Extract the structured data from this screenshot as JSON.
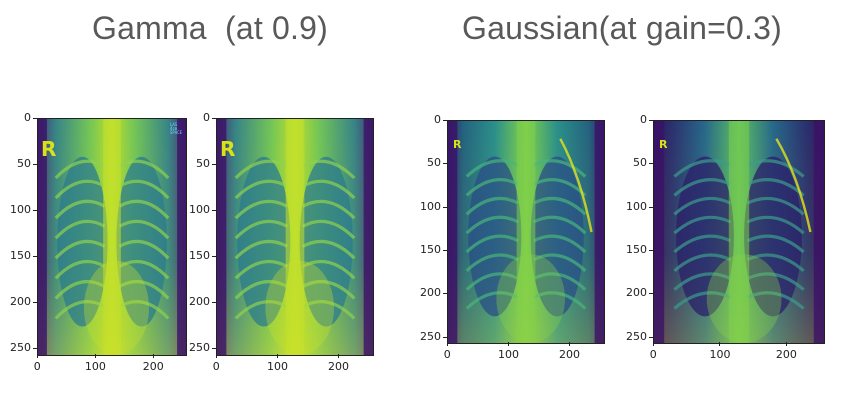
{
  "titles": {
    "left": "Gamma  (at 0.9)",
    "right": "Gaussian(at gain=0.3)"
  },
  "axis": {
    "y_ticks": [
      "0",
      "50",
      "100",
      "150",
      "200",
      "250"
    ],
    "x_ticks": [
      "0",
      "100",
      "200"
    ]
  },
  "images": [
    {
      "name": "gamma-original",
      "corner_letter": "R",
      "style": "bright",
      "has_side_text": true
    },
    {
      "name": "gamma-transformed",
      "corner_letter": "R",
      "style": "bright",
      "has_side_text": false
    },
    {
      "name": "gaussian-original",
      "corner_letter": "R",
      "style": "gauss",
      "has_side_text": false
    },
    {
      "name": "gaussian-transformed",
      "corner_letter": "R",
      "style": "gauss-dark",
      "has_side_text": false
    }
  ],
  "side_text": [
    "LAS",
    "4cm",
    "SPACE"
  ],
  "colors": {
    "viridis_dark": "#440154",
    "viridis_mid": "#21908c",
    "viridis_bright": "#b5de2b",
    "viridis_yellow": "#fde725",
    "letter": "#d8e219"
  }
}
